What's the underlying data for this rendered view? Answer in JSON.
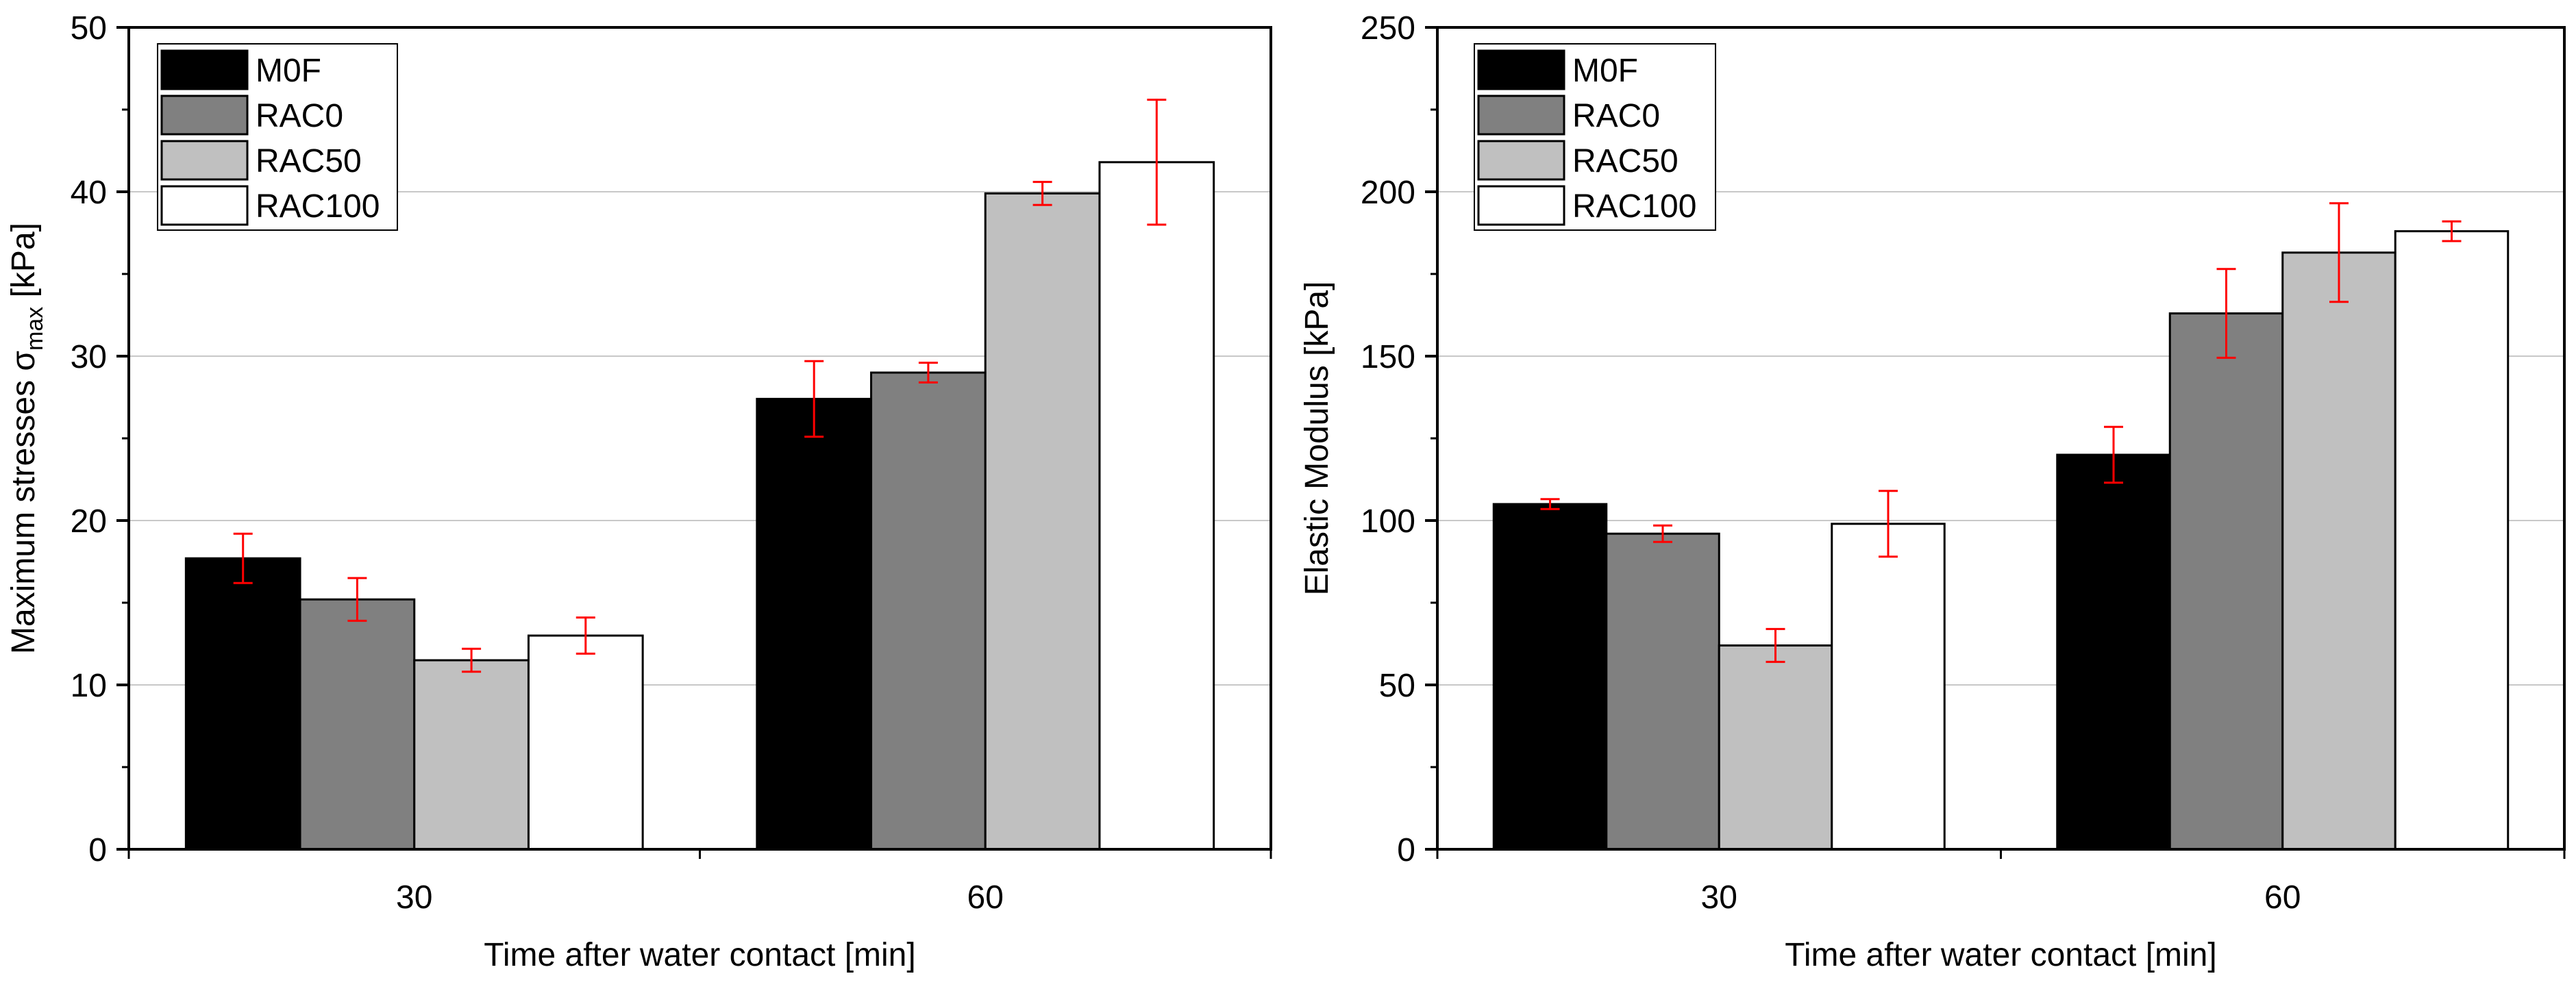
{
  "chart_data": [
    {
      "type": "bar",
      "categories": [
        "30",
        "60"
      ],
      "series": [
        {
          "name": "M0F",
          "color": "#000000",
          "values": [
            17.7,
            27.4
          ],
          "errors": [
            1.5,
            2.3
          ]
        },
        {
          "name": "RAC0",
          "color": "#808080",
          "values": [
            15.2,
            29.0
          ],
          "errors": [
            1.3,
            0.6
          ]
        },
        {
          "name": "RAC50",
          "color": "#c0c0c0",
          "values": [
            11.5,
            39.9
          ],
          "errors": [
            0.7,
            0.7
          ]
        },
        {
          "name": "RAC100",
          "color": "#ffffff",
          "values": [
            13.0,
            41.8
          ],
          "errors": [
            1.1,
            3.8
          ]
        }
      ],
      "xlabel": "Time after water contact [min]",
      "ylabel": "Maximum stresses σ",
      "ylabel_sub": "max",
      "ylabel_unit": " [kPa]",
      "ylim": [
        0,
        50
      ],
      "yticks": [
        0,
        10,
        20,
        30,
        40,
        50
      ],
      "grid": true,
      "legend_position": "top-left",
      "error_color": "#ff0000"
    },
    {
      "type": "bar",
      "categories": [
        "30",
        "60"
      ],
      "series": [
        {
          "name": "M0F",
          "color": "#000000",
          "values": [
            105,
            120
          ],
          "errors": [
            1.5,
            8.5
          ]
        },
        {
          "name": "RAC0",
          "color": "#808080",
          "values": [
            96,
            163
          ],
          "errors": [
            2.5,
            13.5
          ]
        },
        {
          "name": "RAC50",
          "color": "#c0c0c0",
          "values": [
            62,
            181.5
          ],
          "errors": [
            5,
            15
          ]
        },
        {
          "name": "RAC100",
          "color": "#ffffff",
          "values": [
            99,
            188
          ],
          "errors": [
            10,
            3
          ]
        }
      ],
      "xlabel": "Time after water contact [min]",
      "ylabel": "Elastic Modulus [kPa]",
      "ylabel_sub": "",
      "ylabel_unit": "",
      "ylim": [
        0,
        250
      ],
      "yticks": [
        0,
        50,
        100,
        150,
        200,
        250
      ],
      "grid": true,
      "legend_position": "top-left",
      "error_color": "#ff0000"
    }
  ]
}
